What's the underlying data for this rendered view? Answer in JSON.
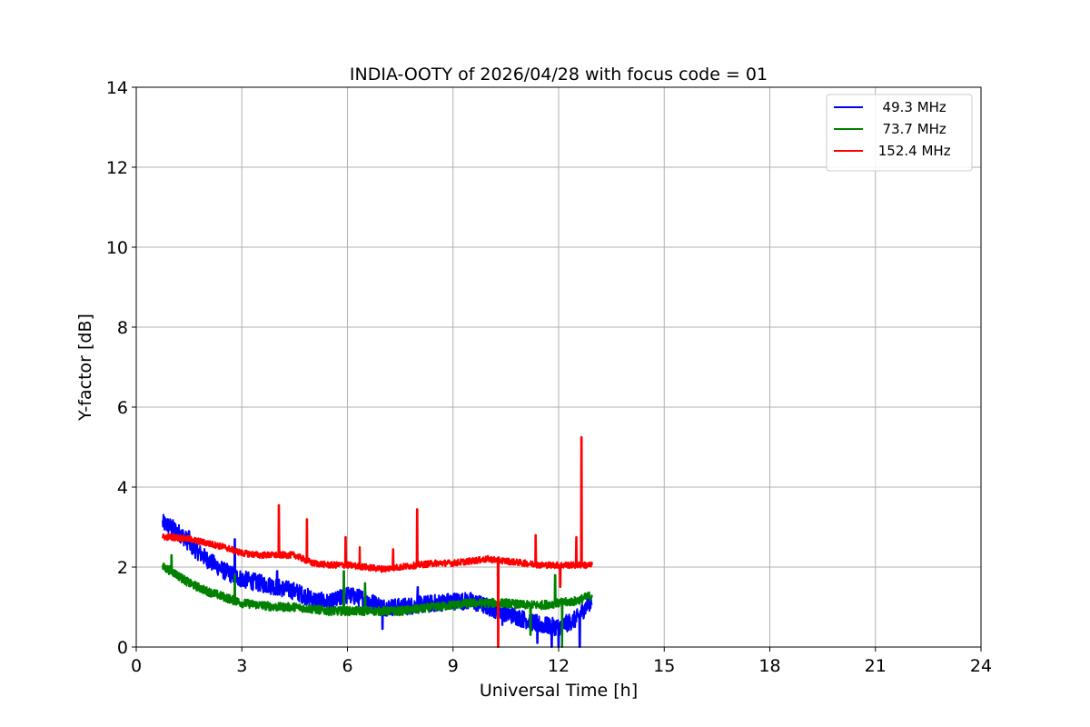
{
  "chart_data": {
    "type": "line",
    "title": "INDIA-OOTY of 2026/04/28 with focus code = 01",
    "xlabel": "Universal Time [h]",
    "ylabel": "Y-factor [dB]",
    "xlim": [
      0,
      24
    ],
    "ylim": [
      0,
      14
    ],
    "xticks": [
      0,
      3,
      6,
      9,
      12,
      15,
      18,
      21,
      24
    ],
    "yticks": [
      0,
      2,
      4,
      6,
      8,
      10,
      12,
      14
    ],
    "grid": true,
    "legend_position": "top-right",
    "series": [
      {
        "name": "  49.3 MHz",
        "color": "#0000ff",
        "noise": 0.22,
        "x": [
          0.75,
          1.0,
          1.3,
          1.6,
          2.0,
          2.5,
          3.0,
          3.5,
          4.0,
          4.5,
          5.0,
          5.5,
          6.0,
          6.5,
          7.0,
          7.5,
          8.0,
          8.5,
          9.0,
          9.5,
          10.0,
          10.5,
          11.0,
          11.5,
          12.0,
          12.5,
          12.95
        ],
        "y": [
          3.1,
          3.0,
          2.8,
          2.5,
          2.2,
          1.9,
          1.7,
          1.6,
          1.5,
          1.4,
          1.2,
          1.1,
          1.3,
          1.2,
          1.0,
          1.0,
          1.05,
          1.1,
          1.15,
          1.15,
          1.0,
          0.85,
          0.7,
          0.55,
          0.5,
          0.7,
          1.2
        ],
        "spikes": [
          [
            1.5,
            2.9
          ],
          [
            2.8,
            2.7
          ],
          [
            3.8,
            1.7
          ],
          [
            4.0,
            1.9
          ],
          [
            6.0,
            1.4
          ],
          [
            7.0,
            0.45
          ],
          [
            8.0,
            1.5
          ],
          [
            10.4,
            0.55
          ],
          [
            11.4,
            0.1
          ],
          [
            11.8,
            0.0
          ],
          [
            12.0,
            0.0
          ],
          [
            12.6,
            0.0
          ]
        ]
      },
      {
        "name": "  73.7 MHz",
        "color": "#008000",
        "noise": 0.11,
        "x": [
          0.75,
          1.0,
          1.5,
          2.0,
          2.5,
          3.0,
          3.5,
          4.0,
          4.5,
          5.0,
          5.5,
          6.0,
          6.5,
          7.0,
          7.5,
          8.0,
          8.5,
          9.0,
          9.5,
          10.0,
          10.5,
          11.0,
          11.5,
          12.0,
          12.5,
          12.95
        ],
        "y": [
          2.0,
          1.9,
          1.6,
          1.4,
          1.25,
          1.1,
          1.05,
          1.0,
          1.0,
          0.95,
          0.9,
          0.9,
          0.9,
          0.9,
          0.9,
          0.95,
          1.0,
          1.05,
          1.1,
          1.1,
          1.1,
          1.05,
          1.05,
          1.1,
          1.15,
          1.3
        ],
        "spikes": [
          [
            1.0,
            2.3
          ],
          [
            2.8,
            1.8
          ],
          [
            5.9,
            1.9
          ],
          [
            6.5,
            1.6
          ],
          [
            11.2,
            0.3
          ],
          [
            11.9,
            1.8
          ],
          [
            12.1,
            0.0
          ]
        ]
      },
      {
        "name": " 152.4 MHz",
        "color": "#ff0000",
        "noise": 0.08,
        "x": [
          0.75,
          1.0,
          1.5,
          2.0,
          2.5,
          3.0,
          3.5,
          4.0,
          4.5,
          5.0,
          5.5,
          6.0,
          6.5,
          7.0,
          7.5,
          8.0,
          8.5,
          9.0,
          9.5,
          10.0,
          10.5,
          11.0,
          11.5,
          12.0,
          12.5,
          12.95
        ],
        "y": [
          2.75,
          2.75,
          2.7,
          2.6,
          2.5,
          2.35,
          2.3,
          2.3,
          2.3,
          2.1,
          2.05,
          2.05,
          2.0,
          1.95,
          2.0,
          2.05,
          2.1,
          2.1,
          2.15,
          2.2,
          2.15,
          2.1,
          2.05,
          2.05,
          2.05,
          2.05
        ],
        "spikes": [
          [
            4.05,
            3.55
          ],
          [
            4.85,
            3.2
          ],
          [
            5.95,
            2.75
          ],
          [
            6.35,
            2.5
          ],
          [
            7.3,
            2.45
          ],
          [
            7.98,
            3.45
          ],
          [
            10.28,
            0.0
          ],
          [
            11.35,
            2.8
          ],
          [
            12.05,
            1.5
          ],
          [
            12.5,
            2.75
          ],
          [
            12.65,
            5.25
          ]
        ]
      }
    ]
  }
}
